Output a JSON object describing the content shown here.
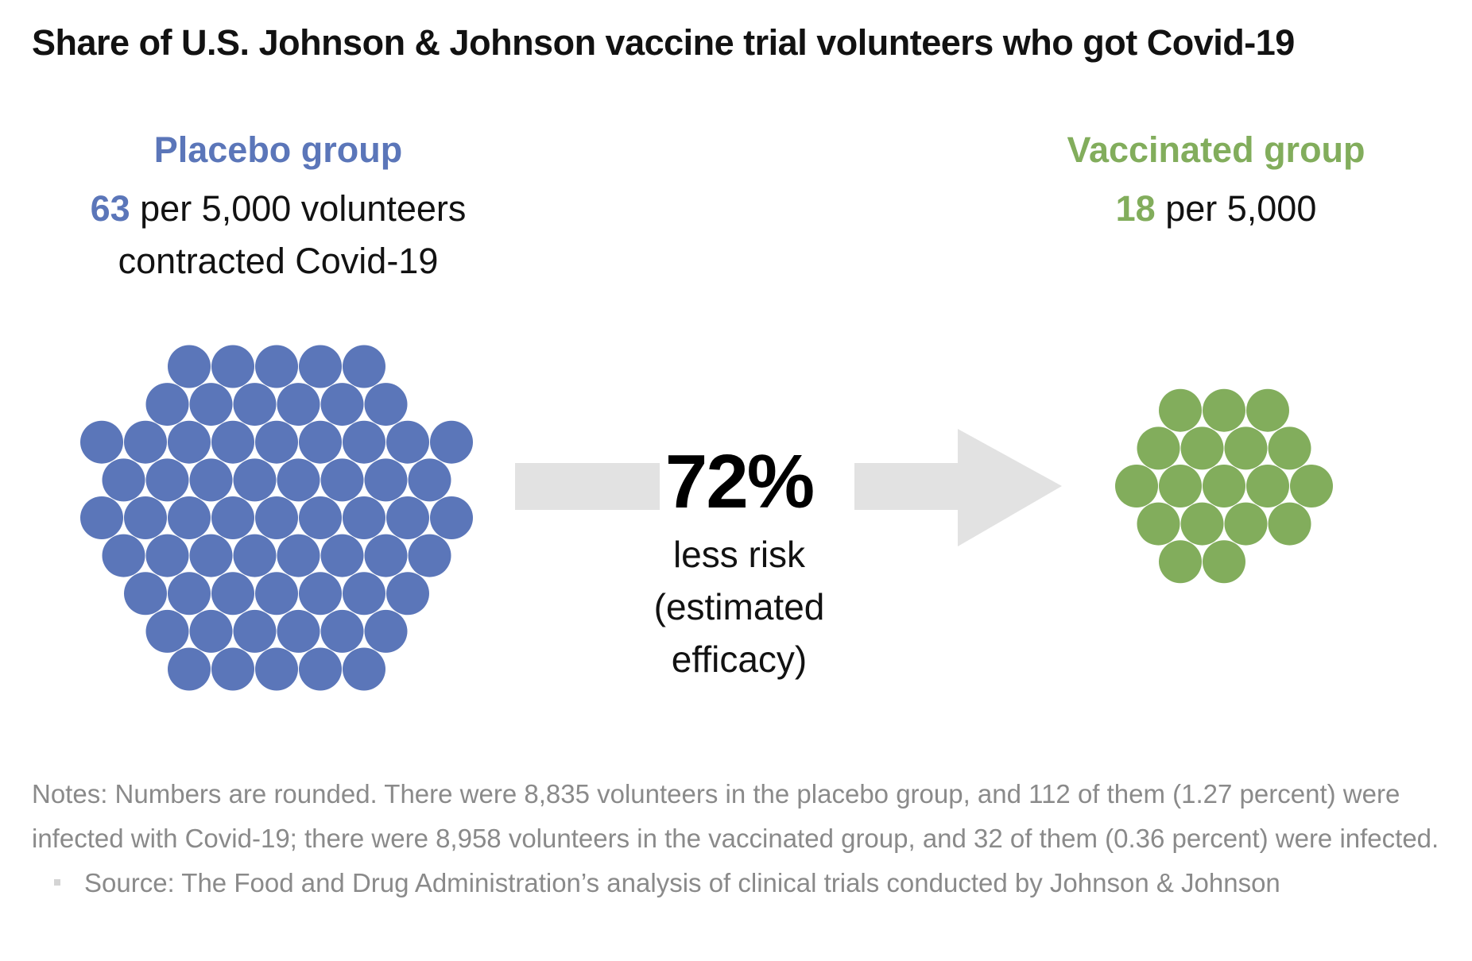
{
  "chart_data": {
    "type": "bubble-comparison",
    "title": "Share of U.S. Johnson & Johnson vaccine trial volunteers who got Covid-19",
    "groups": [
      {
        "name": "Placebo group",
        "value": 63,
        "value_label": "63",
        "sub_text": "per 5,000 volunteers",
        "sub_text_2": "contracted Covid-19",
        "color": "#5b76b9"
      },
      {
        "name": "Vaccinated group",
        "value": 18,
        "value_label": "18",
        "sub_text": "per 5,000",
        "color": "#82ad5c"
      }
    ],
    "efficacy": {
      "value_label": "72%",
      "line1": "less risk",
      "line2": "(estimated",
      "line3": "efficacy)"
    },
    "arrow_color": "#e2e2e2"
  },
  "notes": {
    "text": "Notes: Numbers are rounded. There were 8,835 volunteers in the placebo group, and 112 of them (1.27 percent) were infected with Covid-19; there were 8,958 volunteers in the vaccinated group, and 32 of them (0.36 percent) were infected.",
    "source": "Source: The Food and Drug Administration’s analysis of clinical trials conducted by Johnson & Johnson"
  }
}
